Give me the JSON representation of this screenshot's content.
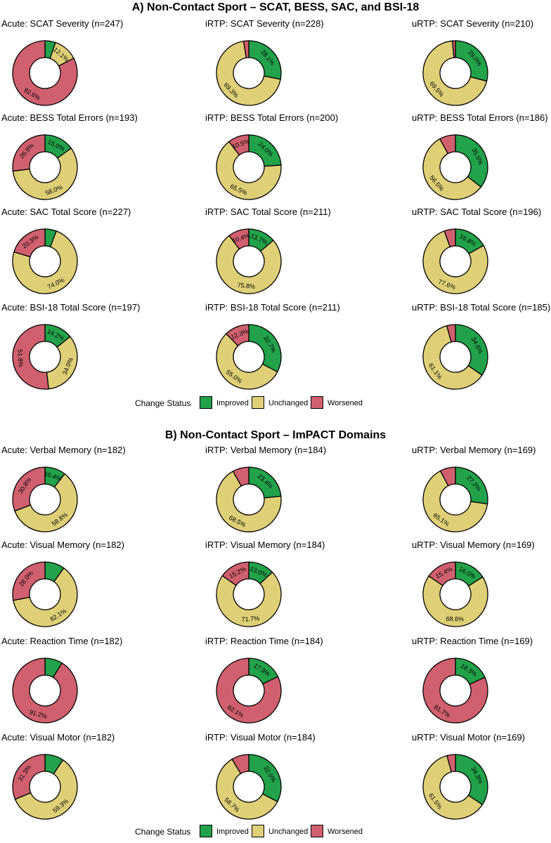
{
  "colors": {
    "improved": "#22a24a",
    "unchanged": "#dfcf77",
    "worsened": "#d0606f",
    "outline": "#000000"
  },
  "sections": [
    {
      "title": "A) Non-Contact Sport – SCAT, BESS, SAC, and BSI-18",
      "legend": {
        "title": "Change Status",
        "improved": "Improved",
        "unchanged": "Unchanged",
        "worsened": "Worsened"
      }
    },
    {
      "title": "B) Non-Contact Sport – ImPACT Domains",
      "legend": {
        "title": "Change Status",
        "improved": "Improved",
        "unchanged": "Unchanged",
        "worsened": "Worsened"
      }
    }
  ],
  "chart_data": [
    {
      "type": "pie",
      "title": "Acute: SCAT Severity (n=247)",
      "categories": [
        "Improved",
        "Unchanged",
        "Worsened"
      ],
      "values": [
        5.3,
        12.1,
        82.6
      ],
      "labels": [
        "",
        "12.1%",
        "82.6%"
      ]
    },
    {
      "type": "pie",
      "title": "iRTP: SCAT Severity (n=228)",
      "categories": [
        "Improved",
        "Unchanged",
        "Worsened"
      ],
      "values": [
        28.1,
        69.3,
        2.6
      ],
      "labels": [
        "28.1%",
        "69.3%",
        ""
      ]
    },
    {
      "type": "pie",
      "title": "uRTP: SCAT Severity (n=210)",
      "categories": [
        "Improved",
        "Unchanged",
        "Worsened"
      ],
      "values": [
        29.0,
        69.5,
        1.5
      ],
      "labels": [
        "29.0%",
        "69.5%",
        ""
      ]
    },
    {
      "type": "pie",
      "title": "Acute: BESS Total Errors (n=193)",
      "categories": [
        "Improved",
        "Unchanged",
        "Worsened"
      ],
      "values": [
        15.0,
        58.0,
        26.9
      ],
      "labels": [
        "15.0%",
        "58.0%",
        "26.9%"
      ]
    },
    {
      "type": "pie",
      "title": "iRTP: BESS Total Errors (n=200)",
      "categories": [
        "Improved",
        "Unchanged",
        "Worsened"
      ],
      "values": [
        24.0,
        65.5,
        10.5
      ],
      "labels": [
        "24.0%",
        "65.5%",
        "10.5%"
      ]
    },
    {
      "type": "pie",
      "title": "uRTP: BESS Total Errors (n=186)",
      "categories": [
        "Improved",
        "Unchanged",
        "Worsened"
      ],
      "values": [
        35.5,
        56.5,
        8.0
      ],
      "labels": [
        "35.5%",
        "56.5%",
        ""
      ]
    },
    {
      "type": "pie",
      "title": "Acute: SAC Total Score (n=227)",
      "categories": [
        "Improved",
        "Unchanged",
        "Worsened"
      ],
      "values": [
        5.7,
        74.0,
        20.3
      ],
      "labels": [
        "",
        "74.0%",
        "20.3%"
      ]
    },
    {
      "type": "pie",
      "title": "iRTP: SAC Total Score (n=211)",
      "categories": [
        "Improved",
        "Unchanged",
        "Worsened"
      ],
      "values": [
        13.7,
        75.8,
        10.4
      ],
      "labels": [
        "13.7%",
        "75.8%",
        "10.4%"
      ]
    },
    {
      "type": "pie",
      "title": "uRTP: SAC Total Score (n=196)",
      "categories": [
        "Improved",
        "Unchanged",
        "Worsened"
      ],
      "values": [
        16.8,
        77.6,
        5.6
      ],
      "labels": [
        "16.8%",
        "77.6%",
        ""
      ]
    },
    {
      "type": "pie",
      "title": "Acute: BSI-18 Total Score (n=197)",
      "categories": [
        "Improved",
        "Unchanged",
        "Worsened"
      ],
      "values": [
        14.2,
        34.0,
        51.8
      ],
      "labels": [
        "14.2%",
        "34.0%",
        "51.8%"
      ]
    },
    {
      "type": "pie",
      "title": "iRTP: BSI-18 Total Score (n=211)",
      "categories": [
        "Improved",
        "Unchanged",
        "Worsened"
      ],
      "values": [
        32.7,
        55.0,
        12.3
      ],
      "labels": [
        "32.7%",
        "55.0%",
        "12.3%"
      ]
    },
    {
      "type": "pie",
      "title": "uRTP: BSI-18 Total Score (n=185)",
      "categories": [
        "Improved",
        "Unchanged",
        "Worsened"
      ],
      "values": [
        34.6,
        61.1,
        4.3
      ],
      "labels": [
        "34.6%",
        "61.1%",
        ""
      ]
    },
    {
      "type": "pie",
      "title": "Acute: Verbal Memory (n=182)",
      "categories": [
        "Improved",
        "Unchanged",
        "Worsened"
      ],
      "values": [
        10.4,
        58.8,
        30.8
      ],
      "labels": [
        "10.4%",
        "58.8%",
        "30.8%"
      ]
    },
    {
      "type": "pie",
      "title": "iRTP: Verbal Memory (n=184)",
      "categories": [
        "Improved",
        "Unchanged",
        "Worsened"
      ],
      "values": [
        23.4,
        68.5,
        8.1
      ],
      "labels": [
        "23.4%",
        "68.5%",
        ""
      ]
    },
    {
      "type": "pie",
      "title": "uRTP: Verbal Memory (n=169)",
      "categories": [
        "Improved",
        "Unchanged",
        "Worsened"
      ],
      "values": [
        27.2,
        65.1,
        7.7
      ],
      "labels": [
        "27.2%",
        "65.1%",
        ""
      ]
    },
    {
      "type": "pie",
      "title": "Acute: Visual Memory (n=182)",
      "categories": [
        "Improved",
        "Unchanged",
        "Worsened"
      ],
      "values": [
        9.9,
        62.1,
        28.0
      ],
      "labels": [
        "",
        "62.1%",
        "28.0%"
      ]
    },
    {
      "type": "pie",
      "title": "iRTP: Visual Memory (n=184)",
      "categories": [
        "Improved",
        "Unchanged",
        "Worsened"
      ],
      "values": [
        13.0,
        71.7,
        15.2
      ],
      "labels": [
        "13.0%",
        "71.7%",
        "15.2%"
      ]
    },
    {
      "type": "pie",
      "title": "uRTP: Visual Memory (n=169)",
      "categories": [
        "Improved",
        "Unchanged",
        "Worsened"
      ],
      "values": [
        16.0,
        68.6,
        15.4
      ],
      "labels": [
        "16.0%",
        "68.6%",
        "15.4%"
      ]
    },
    {
      "type": "pie",
      "title": "Acute: Reaction Time (n=182)",
      "categories": [
        "Improved",
        "Unchanged",
        "Worsened"
      ],
      "values": [
        8.8,
        0,
        91.2
      ],
      "labels": [
        "",
        "",
        "91.2%"
      ]
    },
    {
      "type": "pie",
      "title": "iRTP: Reaction Time (n=184)",
      "categories": [
        "Improved",
        "Unchanged",
        "Worsened"
      ],
      "values": [
        17.9,
        0,
        82.1
      ],
      "labels": [
        "17.9%",
        "",
        "82.1%"
      ]
    },
    {
      "type": "pie",
      "title": "uRTP: Reaction Time (n=169)",
      "categories": [
        "Improved",
        "Unchanged",
        "Worsened"
      ],
      "values": [
        18.3,
        0,
        81.7
      ],
      "labels": [
        "18.3%",
        "",
        "81.7%"
      ]
    },
    {
      "type": "pie",
      "title": "Acute: Visual Motor (n=182)",
      "categories": [
        "Improved",
        "Unchanged",
        "Worsened"
      ],
      "values": [
        9.4,
        59.3,
        31.3
      ],
      "labels": [
        "",
        "59.3%",
        "31.3%"
      ]
    },
    {
      "type": "pie",
      "title": "iRTP: Visual Motor (n=184)",
      "categories": [
        "Improved",
        "Unchanged",
        "Worsened"
      ],
      "values": [
        32.6,
        58.7,
        8.7
      ],
      "labels": [
        "32.6%",
        "58.7%",
        ""
      ]
    },
    {
      "type": "pie",
      "title": "uRTP: Visual Motor (n=169)",
      "categories": [
        "Improved",
        "Unchanged",
        "Worsened"
      ],
      "values": [
        34.3,
        61.5,
        4.2
      ],
      "labels": [
        "34.3%",
        "61.5%",
        ""
      ]
    }
  ]
}
